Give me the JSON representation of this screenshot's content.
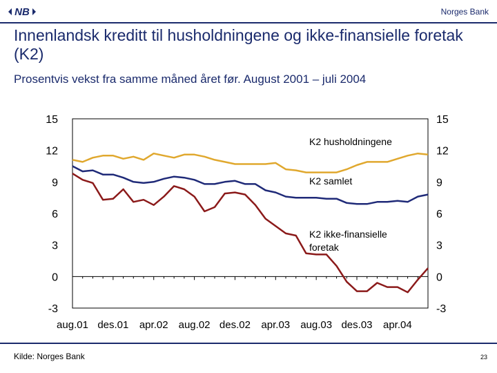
{
  "header": {
    "logo_text": "NB",
    "brand": "Norges Bank"
  },
  "title": "Innenlandsk kreditt til husholdningene og ikke-finansielle foretak (K2)",
  "subtitle": "Prosentvis vekst fra samme måned året før. August 2001 – juli 2004",
  "footer": {
    "source": "Kilde: Norges Bank",
    "page_number": "23"
  },
  "chart_data": {
    "type": "line",
    "x": [
      "aug.01",
      "sep.01",
      "okt.01",
      "nov.01",
      "des.01",
      "jan.02",
      "feb.02",
      "mar.02",
      "apr.02",
      "mai.02",
      "jun.02",
      "jul.02",
      "aug.02",
      "sep.02",
      "okt.02",
      "nov.02",
      "des.02",
      "jan.03",
      "feb.03",
      "mar.03",
      "apr.03",
      "mai.03",
      "jun.03",
      "jul.03",
      "aug.03",
      "sep.03",
      "okt.03",
      "nov.03",
      "des.03",
      "jan.04",
      "feb.04",
      "mar.04",
      "apr.04",
      "mai.04",
      "jun.04",
      "jul.04"
    ],
    "x_tick_labels": [
      "aug.01",
      "des.01",
      "apr.02",
      "aug.02",
      "des.02",
      "apr.03",
      "aug.03",
      "des.03",
      "apr.04"
    ],
    "ylim": [
      -3,
      15
    ],
    "y_ticks": [
      "-3",
      "0",
      "3",
      "6",
      "9",
      "12",
      "15"
    ],
    "series": [
      {
        "name": "K2 husholdningene",
        "color": "#e0a82e",
        "values": [
          11.1,
          10.9,
          11.3,
          11.5,
          11.5,
          11.2,
          11.4,
          11.1,
          11.7,
          11.5,
          11.3,
          11.6,
          11.6,
          11.4,
          11.1,
          10.9,
          10.7,
          10.7,
          10.7,
          10.7,
          10.8,
          10.2,
          10.1,
          9.9,
          9.9,
          9.9,
          9.9,
          10.2,
          10.6,
          10.9,
          10.9,
          10.9,
          11.2,
          11.5,
          11.7,
          11.6
        ]
      },
      {
        "name": "K2 samlet",
        "color": "#1f2a78",
        "values": [
          10.5,
          10.0,
          10.1,
          9.7,
          9.7,
          9.4,
          9.0,
          8.9,
          9.0,
          9.3,
          9.5,
          9.4,
          9.2,
          8.8,
          8.8,
          9.0,
          9.1,
          8.8,
          8.8,
          8.2,
          8.0,
          7.6,
          7.5,
          7.5,
          7.5,
          7.4,
          7.4,
          7.0,
          6.9,
          6.9,
          7.1,
          7.1,
          7.2,
          7.1,
          7.6,
          7.8
        ]
      },
      {
        "name": "K2 ikke-finansielle foretak",
        "color": "#8b1a1a",
        "values": [
          9.8,
          9.2,
          8.9,
          7.3,
          7.4,
          8.3,
          7.1,
          7.3,
          6.8,
          7.6,
          8.6,
          8.3,
          7.6,
          6.2,
          6.6,
          7.9,
          8.0,
          7.8,
          6.8,
          5.5,
          4.8,
          4.1,
          3.9,
          2.2,
          2.1,
          2.1,
          1.0,
          -0.5,
          -1.4,
          -1.4,
          -0.6,
          -1.0,
          -1.0,
          -1.5,
          -0.3,
          0.8
        ]
      }
    ],
    "legend": [
      "K2 husholdningene",
      "K2 samlet",
      "K2 ikke-finansielle\nforetak"
    ],
    "grid": false
  }
}
